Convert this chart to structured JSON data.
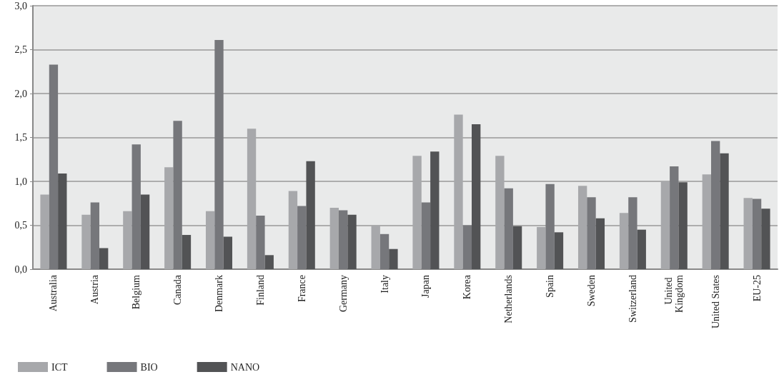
{
  "chart_data": {
    "type": "bar",
    "categories": [
      "Australia",
      "Austria",
      "Belgium",
      "Canada",
      "Denmark",
      "Finland",
      "France",
      "Germany",
      "Italy",
      "Japan",
      "Korea",
      "Netherlands",
      "Spain",
      "Sweden",
      "Switzerland",
      "United Kingdom",
      "United States",
      "EU-25"
    ],
    "series": [
      {
        "name": "ICT",
        "color": "#a7a8ab",
        "values": [
          0.85,
          0.62,
          0.66,
          1.16,
          0.66,
          1.6,
          0.89,
          0.7,
          0.5,
          1.29,
          1.76,
          1.29,
          0.48,
          0.95,
          0.64,
          1.0,
          1.08,
          0.81
        ]
      },
      {
        "name": "BIO",
        "color": "#76777b",
        "values": [
          2.33,
          0.76,
          1.42,
          1.69,
          2.61,
          0.61,
          0.72,
          0.67,
          0.4,
          0.76,
          0.5,
          0.92,
          0.97,
          0.82,
          0.82,
          1.17,
          1.46,
          0.8
        ]
      },
      {
        "name": "NANO",
        "color": "#525355",
        "values": [
          1.09,
          0.24,
          0.85,
          0.39,
          0.37,
          0.16,
          1.23,
          0.62,
          0.23,
          1.34,
          1.65,
          0.49,
          0.42,
          0.58,
          0.45,
          0.99,
          1.32,
          0.69
        ]
      }
    ],
    "ylim": [
      0,
      3
    ],
    "yticks": [
      {
        "value": 0,
        "label": "0,0"
      },
      {
        "value": 0.5,
        "label": "0,5"
      },
      {
        "value": 1,
        "label": "1,0"
      },
      {
        "value": 1.5,
        "label": "1,5"
      },
      {
        "value": 2,
        "label": "2,0"
      },
      {
        "value": 2.5,
        "label": "2,5"
      },
      {
        "value": 3,
        "label": "3,0"
      }
    ],
    "grid": "y",
    "legend": "bottom left"
  }
}
